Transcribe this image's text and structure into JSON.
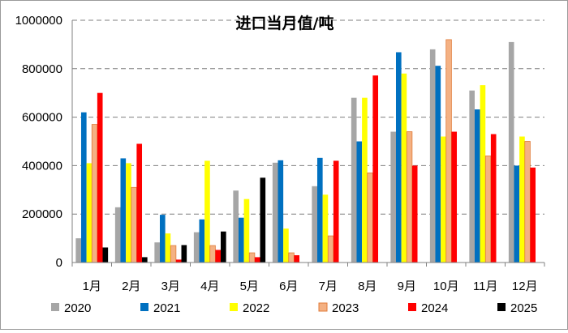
{
  "chart_data": {
    "type": "bar",
    "title": "进口当月值/吨",
    "xlabel": "",
    "ylabel": "",
    "ylim": [
      0,
      1000000
    ],
    "yticks": [
      0,
      200000,
      400000,
      600000,
      800000,
      1000000
    ],
    "grid": true,
    "legend_position": "bottom",
    "categories": [
      "1月",
      "2月",
      "3月",
      "4月",
      "5月",
      "6月",
      "7月",
      "8月",
      "9月",
      "10月",
      "11月",
      "12月"
    ],
    "series": [
      {
        "name": "2020",
        "color": "#a6a6a6",
        "values": [
          100000,
          228000,
          83000,
          125000,
          297000,
          412000,
          315000,
          680000,
          540000,
          880000,
          710000,
          910000
        ]
      },
      {
        "name": "2021",
        "color": "#0070c0",
        "values": [
          620000,
          430000,
          197000,
          178000,
          185000,
          422000,
          432000,
          500000,
          868000,
          812000,
          632000,
          400000
        ]
      },
      {
        "name": "2022",
        "color": "#ffff00",
        "values": [
          410000,
          410000,
          120000,
          420000,
          262000,
          140000,
          280000,
          680000,
          780000,
          520000,
          732000,
          520000
        ]
      },
      {
        "name": "2023",
        "color": "#f4b183",
        "values": [
          570000,
          310000,
          70000,
          70000,
          40000,
          40000,
          110000,
          370000,
          540000,
          920000,
          440000,
          500000
        ]
      },
      {
        "name": "2024",
        "color": "#ff0000",
        "values": [
          700000,
          490000,
          12000,
          52000,
          22000,
          30000,
          420000,
          772000,
          400000,
          540000,
          530000,
          392000
        ]
      },
      {
        "name": "2025",
        "color": "#000000",
        "values": [
          62000,
          22000,
          72000,
          128000,
          350000,
          null,
          null,
          null,
          null,
          null,
          null,
          null
        ]
      }
    ]
  }
}
